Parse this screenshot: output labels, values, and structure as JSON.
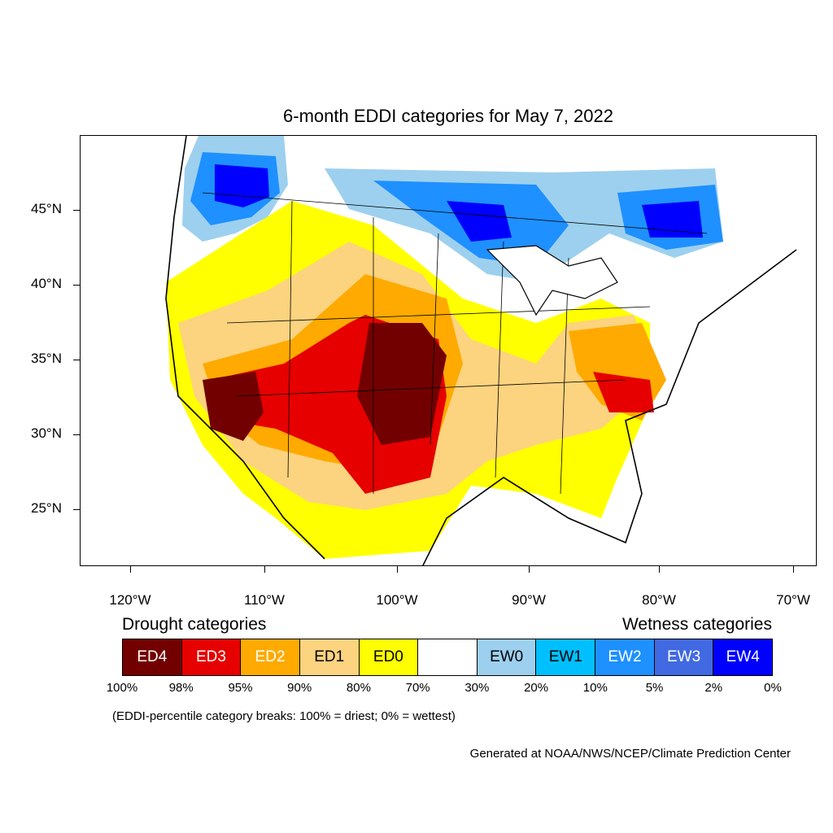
{
  "title": "6-month EDDI categories for May 7, 2022",
  "lat_labels": [
    "45°N",
    "40°N",
    "35°N",
    "30°N",
    "25°N"
  ],
  "lon_labels": [
    "120°W",
    "110°W",
    "100°W",
    "90°W",
    "80°W",
    "70°W"
  ],
  "legend": {
    "drought_heading": "Drought categories",
    "wetness_heading": "Wetness categories",
    "categories": [
      {
        "label": "ED4",
        "color": "#730000",
        "text_color": "#ffffff"
      },
      {
        "label": "ED3",
        "color": "#e60000",
        "text_color": "#ffffff"
      },
      {
        "label": "ED2",
        "color": "#ffaa00",
        "text_color": "#ffffff"
      },
      {
        "label": "ED1",
        "color": "#fcd37f",
        "text_color": "#000000"
      },
      {
        "label": "ED0",
        "color": "#ffff00",
        "text_color": "#000000"
      },
      {
        "label": "",
        "color": "#ffffff",
        "text_color": "#000000"
      },
      {
        "label": "EW0",
        "color": "#9dd0ee",
        "text_color": "#000000"
      },
      {
        "label": "EW1",
        "color": "#00bfff",
        "text_color": "#000000"
      },
      {
        "label": "EW2",
        "color": "#1e90ff",
        "text_color": "#ffffff"
      },
      {
        "label": "EW3",
        "color": "#4169e1",
        "text_color": "#ffffff"
      },
      {
        "label": "EW4",
        "color": "#0000ff",
        "text_color": "#ffffff"
      }
    ],
    "breaks": [
      "100%",
      "98%",
      "95%",
      "90%",
      "80%",
      "70%",
      "30%",
      "20%",
      "10%",
      "5%",
      "2%",
      "0%"
    ]
  },
  "note": "(EDDI-percentile category breaks: 100% = driest; 0% = wettest)",
  "credit": "Generated at NOAA/NWS/NCEP/Climate Prediction Center"
}
